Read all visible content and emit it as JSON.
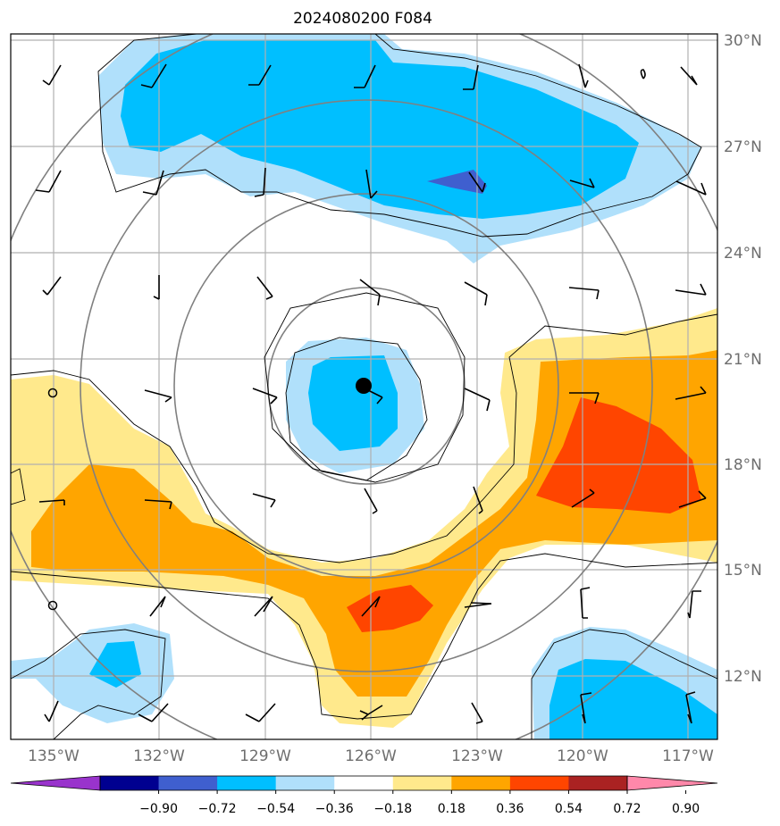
{
  "title": "2024080200 F084",
  "lat_labels": [
    "30°N",
    "27°N",
    "24°N",
    "21°N",
    "18°N",
    "15°N",
    "12°N"
  ],
  "lon_labels": [
    "135°W",
    "132°W",
    "129°W",
    "126°W",
    "123°W",
    "120°W",
    "117°W"
  ],
  "colorbar": {
    "tick_labels": [
      "−0.90",
      "−0.72",
      "−0.54",
      "−0.36",
      "−0.18",
      "0.18",
      "0.36",
      "0.54",
      "0.72",
      "0.90"
    ],
    "colors": [
      "#9933cc",
      "#000090",
      "#3f5fcf",
      "#00bfff",
      "#b0e0fb",
      "#ffffff",
      "#ffe98c",
      "#ffa500",
      "#ff4500",
      "#aa2222",
      "#ff88aa"
    ]
  },
  "colors": {
    "light_blue": "#b0e0fb",
    "blue": "#00bfff",
    "dark_blue": "#3f5fcf",
    "yellow": "#ffe98c",
    "orange": "#ffa500",
    "red_orange": "#ff4500",
    "grid": "#b0b0b0",
    "ring": "#808080"
  },
  "storm_center_marker": "filled-circle"
}
